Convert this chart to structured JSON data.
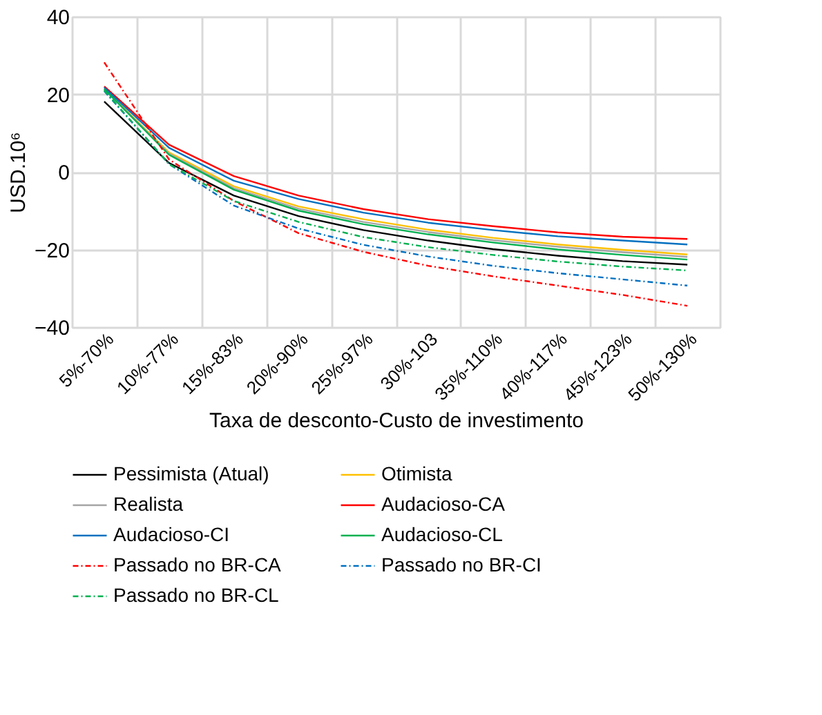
{
  "chart_data": {
    "type": "line",
    "xlabel": "Taxa de desconto-Custo de investimento",
    "ylabel": "USD.10⁶",
    "categories": [
      "5%-70%",
      "10%-77%",
      "15%-83%",
      "20%-90%",
      "25%-97%",
      "30%-103",
      "35%-110%",
      "40%-117%",
      "45%-123%",
      "50%-130%"
    ],
    "ylim": [
      -40,
      40
    ],
    "yticks": [
      -40,
      -20,
      0,
      20,
      40
    ],
    "grid": true,
    "legend": "bottom",
    "marker": "none",
    "series": [
      {
        "name": "Pessimista (Atual)",
        "color": "#000000",
        "line_style": "solid",
        "values": [
          18.1,
          2.3,
          -6.1,
          -11.4,
          -15.0,
          -17.7,
          -19.9,
          -21.6,
          -23.0,
          -23.9
        ]
      },
      {
        "name": "Otimista",
        "color": "#ffc000",
        "line_style": "solid",
        "values": [
          21.4,
          5.0,
          -3.7,
          -8.9,
          -12.2,
          -14.9,
          -17.0,
          -18.7,
          -20.1,
          -21.3
        ]
      },
      {
        "name": "Realista",
        "color": "#a5a5a5",
        "line_style": "solid",
        "values": [
          21.3,
          4.7,
          -4.2,
          -9.5,
          -12.9,
          -15.5,
          -17.6,
          -19.3,
          -20.7,
          -21.9
        ]
      },
      {
        "name": "Audacioso-CA",
        "color": "#ff0000",
        "line_style": "solid",
        "values": [
          22.0,
          7.0,
          -1.1,
          -6.1,
          -9.6,
          -12.2,
          -14.0,
          -15.6,
          -16.7,
          -17.3
        ]
      },
      {
        "name": "Audacioso-CI",
        "color": "#0070c0",
        "line_style": "solid",
        "values": [
          21.7,
          6.2,
          -2.3,
          -7.0,
          -10.5,
          -13.1,
          -15.0,
          -16.6,
          -17.7,
          -18.7
        ]
      },
      {
        "name": "Audacioso-CL",
        "color": "#00b050",
        "line_style": "solid",
        "values": [
          21.3,
          4.4,
          -4.6,
          -10.0,
          -13.5,
          -16.1,
          -18.2,
          -20.0,
          -21.4,
          -22.6
        ]
      },
      {
        "name": "Passado no BR-CA",
        "color": "#ff0000",
        "line_style": "dashdot",
        "values": [
          28.2,
          3.2,
          -7.5,
          -15.8,
          -20.6,
          -24.2,
          -26.9,
          -29.3,
          -31.7,
          -34.5
        ]
      },
      {
        "name": "Passado no BR-CI",
        "color": "#0070c0",
        "line_style": "dashdot",
        "values": [
          20.8,
          2.0,
          -8.7,
          -14.6,
          -18.8,
          -21.8,
          -24.2,
          -26.1,
          -27.7,
          -29.3
        ]
      },
      {
        "name": "Passado no BR-CL",
        "color": "#00b050",
        "line_style": "dashdot",
        "values": [
          21.0,
          2.0,
          -7.5,
          -12.9,
          -16.8,
          -19.4,
          -21.4,
          -23.1,
          -24.4,
          -25.4
        ]
      }
    ]
  }
}
